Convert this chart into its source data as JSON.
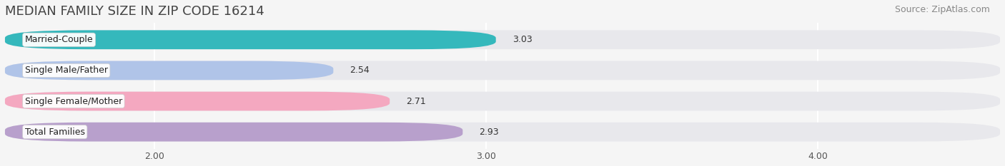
{
  "title": "MEDIAN FAMILY SIZE IN ZIP CODE 16214",
  "source": "Source: ZipAtlas.com",
  "categories": [
    "Married-Couple",
    "Single Male/Father",
    "Single Female/Mother",
    "Total Families"
  ],
  "values": [
    3.03,
    2.54,
    2.71,
    2.93
  ],
  "bar_colors": [
    "#35b8bc",
    "#b0c4e8",
    "#f4a8c0",
    "#b8a0cc"
  ],
  "bar_bg_color": "#e8e8ec",
  "xlim_left": 1.55,
  "xlim_right": 4.55,
  "xticks": [
    2.0,
    3.0,
    4.0
  ],
  "xtick_labels": [
    "2.00",
    "3.00",
    "4.00"
  ],
  "title_fontsize": 13,
  "source_fontsize": 9,
  "label_fontsize": 9,
  "value_fontsize": 9,
  "bar_height": 0.62,
  "background_color": "#f5f5f5"
}
